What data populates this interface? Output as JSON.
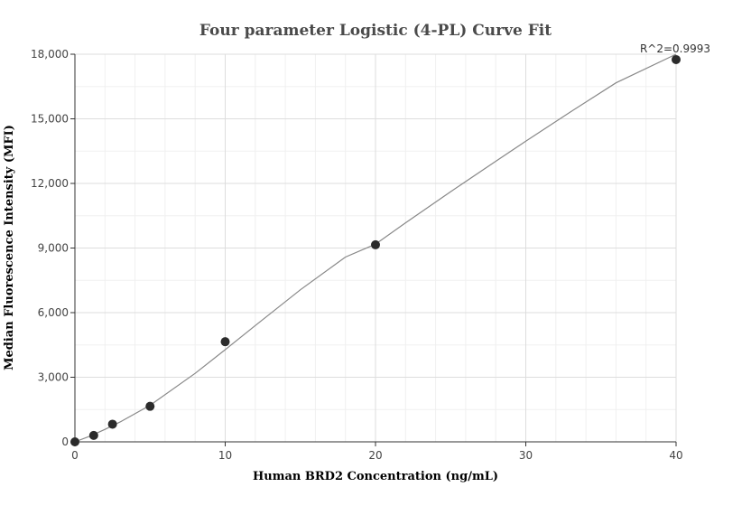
{
  "chart_data": {
    "type": "scatter",
    "title": "Four parameter Logistic (4-PL) Curve Fit",
    "xlabel": "Human BRD2 Concentration (ng/mL)",
    "ylabel": "Median Fluorescence Intensity (MFI)",
    "xlim": [
      0,
      40
    ],
    "ylim": [
      0,
      18000
    ],
    "x_ticks": [
      0,
      10,
      20,
      30,
      40
    ],
    "x_tick_labels": [
      "0",
      "10",
      "20",
      "30",
      "40"
    ],
    "y_ticks": [
      0,
      3000,
      6000,
      9000,
      12000,
      15000,
      18000
    ],
    "y_tick_labels": [
      "0",
      "3,000",
      "6,000",
      "9,000",
      "12,000",
      "15,000",
      "18,000"
    ],
    "grid": true,
    "annotation": "R^2=0.9993",
    "series": [
      {
        "x": [
          0,
          1.25,
          2.5,
          5,
          10,
          20,
          40
        ],
        "y": [
          0,
          300,
          820,
          1650,
          4650,
          9150,
          17750
        ]
      }
    ],
    "fit_curve": {
      "x": [
        0,
        1,
        2,
        3,
        5,
        8,
        10,
        12,
        15,
        18,
        20,
        22,
        25,
        28,
        30,
        33,
        36,
        40
      ],
      "y": [
        0,
        265,
        580,
        920,
        1700,
        3180,
        4280,
        5400,
        7060,
        8580,
        9180,
        10170,
        11620,
        13030,
        13960,
        15330,
        16670,
        18000
      ]
    },
    "colors": {
      "marker": "#2b2b2b",
      "curve": "#888888"
    }
  }
}
